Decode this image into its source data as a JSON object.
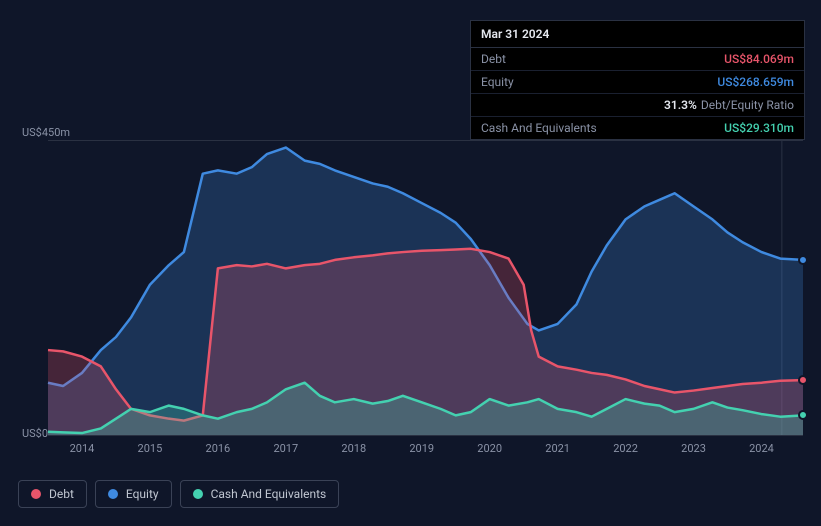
{
  "tooltip": {
    "date": "Mar 31 2024",
    "rows": [
      {
        "label": "Debt",
        "value": "US$84.069m",
        "color": "#e8556a"
      },
      {
        "label": "Equity",
        "value": "US$268.659m",
        "color": "#3f8ae0"
      },
      {
        "label": "",
        "ratio": "31.3%",
        "ratio_label": "Debt/Equity Ratio"
      },
      {
        "label": "Cash And Equivalents",
        "value": "US$29.310m",
        "color": "#44d1b0"
      }
    ]
  },
  "chart": {
    "type": "area",
    "y_max_label": "US$450m",
    "y_min_label": "US$0",
    "y_max": 450,
    "background": "#0f1629",
    "grid_color": "#2a3142",
    "vline_x": 97.2,
    "x_years": [
      "2014",
      "2015",
      "2016",
      "2017",
      "2018",
      "2019",
      "2020",
      "2021",
      "2022",
      "2023",
      "2024"
    ],
    "x_positions": [
      4.5,
      13.5,
      22.5,
      31.5,
      40.5,
      49.5,
      58.5,
      67.5,
      76.5,
      85.5,
      94.5
    ],
    "series": [
      {
        "name": "Equity",
        "color": "#3f8ae0",
        "fill": "rgba(63,138,224,0.25)",
        "stroke_width": 2.5,
        "points": [
          [
            0,
            80
          ],
          [
            2,
            75
          ],
          [
            4.5,
            95
          ],
          [
            7,
            130
          ],
          [
            9,
            150
          ],
          [
            11,
            180
          ],
          [
            13.5,
            230
          ],
          [
            16,
            260
          ],
          [
            18,
            280
          ],
          [
            20.5,
            400
          ],
          [
            22.5,
            405
          ],
          [
            25,
            400
          ],
          [
            27,
            410
          ],
          [
            29,
            430
          ],
          [
            31.5,
            440
          ],
          [
            34,
            420
          ],
          [
            36,
            415
          ],
          [
            38,
            405
          ],
          [
            40.5,
            395
          ],
          [
            43,
            385
          ],
          [
            45,
            380
          ],
          [
            47,
            370
          ],
          [
            49.5,
            355
          ],
          [
            52,
            340
          ],
          [
            54,
            325
          ],
          [
            56,
            300
          ],
          [
            58.5,
            260
          ],
          [
            61,
            210
          ],
          [
            63.5,
            170
          ],
          [
            65,
            160
          ],
          [
            67.5,
            170
          ],
          [
            70,
            200
          ],
          [
            72,
            250
          ],
          [
            74,
            290
          ],
          [
            76.5,
            330
          ],
          [
            79,
            350
          ],
          [
            81,
            360
          ],
          [
            83,
            370
          ],
          [
            85.5,
            350
          ],
          [
            88,
            330
          ],
          [
            90,
            310
          ],
          [
            92,
            295
          ],
          [
            94.5,
            280
          ],
          [
            97,
            270
          ],
          [
            100,
            268
          ]
        ]
      },
      {
        "name": "Debt",
        "color": "#e8556a",
        "fill": "rgba(232,85,106,0.25)",
        "stroke_width": 2.5,
        "points": [
          [
            0,
            130
          ],
          [
            2,
            128
          ],
          [
            4.5,
            120
          ],
          [
            7,
            105
          ],
          [
            9,
            70
          ],
          [
            11,
            40
          ],
          [
            13.5,
            30
          ],
          [
            16,
            25
          ],
          [
            18,
            22
          ],
          [
            20.5,
            30
          ],
          [
            22.5,
            255
          ],
          [
            25,
            260
          ],
          [
            27,
            258
          ],
          [
            29,
            262
          ],
          [
            31.5,
            255
          ],
          [
            34,
            260
          ],
          [
            36,
            262
          ],
          [
            38,
            268
          ],
          [
            40.5,
            272
          ],
          [
            43,
            275
          ],
          [
            45,
            278
          ],
          [
            47,
            280
          ],
          [
            49.5,
            282
          ],
          [
            52,
            283
          ],
          [
            54,
            284
          ],
          [
            56,
            285
          ],
          [
            58.5,
            280
          ],
          [
            61,
            270
          ],
          [
            63,
            230
          ],
          [
            64,
            160
          ],
          [
            65,
            120
          ],
          [
            67.5,
            105
          ],
          [
            70,
            100
          ],
          [
            72,
            95
          ],
          [
            74,
            92
          ],
          [
            76.5,
            85
          ],
          [
            79,
            75
          ],
          [
            81,
            70
          ],
          [
            83,
            65
          ],
          [
            85.5,
            68
          ],
          [
            88,
            72
          ],
          [
            90,
            75
          ],
          [
            92,
            78
          ],
          [
            94.5,
            80
          ],
          [
            97,
            83
          ],
          [
            100,
            84
          ]
        ]
      },
      {
        "name": "Cash And Equivalents",
        "color": "#44d1b0",
        "fill": "rgba(68,209,176,0.28)",
        "stroke_width": 2.5,
        "points": [
          [
            0,
            5
          ],
          [
            2,
            4
          ],
          [
            4.5,
            3
          ],
          [
            7,
            10
          ],
          [
            9,
            25
          ],
          [
            11,
            40
          ],
          [
            13.5,
            35
          ],
          [
            16,
            45
          ],
          [
            18,
            40
          ],
          [
            20.5,
            30
          ],
          [
            22.5,
            25
          ],
          [
            25,
            35
          ],
          [
            27,
            40
          ],
          [
            29,
            50
          ],
          [
            31.5,
            70
          ],
          [
            34,
            80
          ],
          [
            36,
            60
          ],
          [
            38,
            50
          ],
          [
            40.5,
            55
          ],
          [
            43,
            48
          ],
          [
            45,
            52
          ],
          [
            47,
            60
          ],
          [
            49.5,
            50
          ],
          [
            52,
            40
          ],
          [
            54,
            30
          ],
          [
            56,
            35
          ],
          [
            58.5,
            55
          ],
          [
            61,
            45
          ],
          [
            63.5,
            50
          ],
          [
            65,
            55
          ],
          [
            67.5,
            40
          ],
          [
            70,
            35
          ],
          [
            72,
            28
          ],
          [
            74,
            40
          ],
          [
            76.5,
            55
          ],
          [
            79,
            48
          ],
          [
            81,
            45
          ],
          [
            83,
            35
          ],
          [
            85.5,
            40
          ],
          [
            88,
            50
          ],
          [
            90,
            42
          ],
          [
            92,
            38
          ],
          [
            94.5,
            32
          ],
          [
            97,
            28
          ],
          [
            100,
            30
          ]
        ]
      }
    ],
    "end_markers": [
      {
        "color": "#3f8ae0",
        "x": 100,
        "y": 268
      },
      {
        "color": "#e8556a",
        "x": 100,
        "y": 84
      },
      {
        "color": "#44d1b0",
        "x": 100,
        "y": 30
      }
    ]
  },
  "legend": [
    {
      "label": "Debt",
      "color": "#e8556a"
    },
    {
      "label": "Equity",
      "color": "#3f8ae0"
    },
    {
      "label": "Cash And Equivalents",
      "color": "#44d1b0"
    }
  ]
}
